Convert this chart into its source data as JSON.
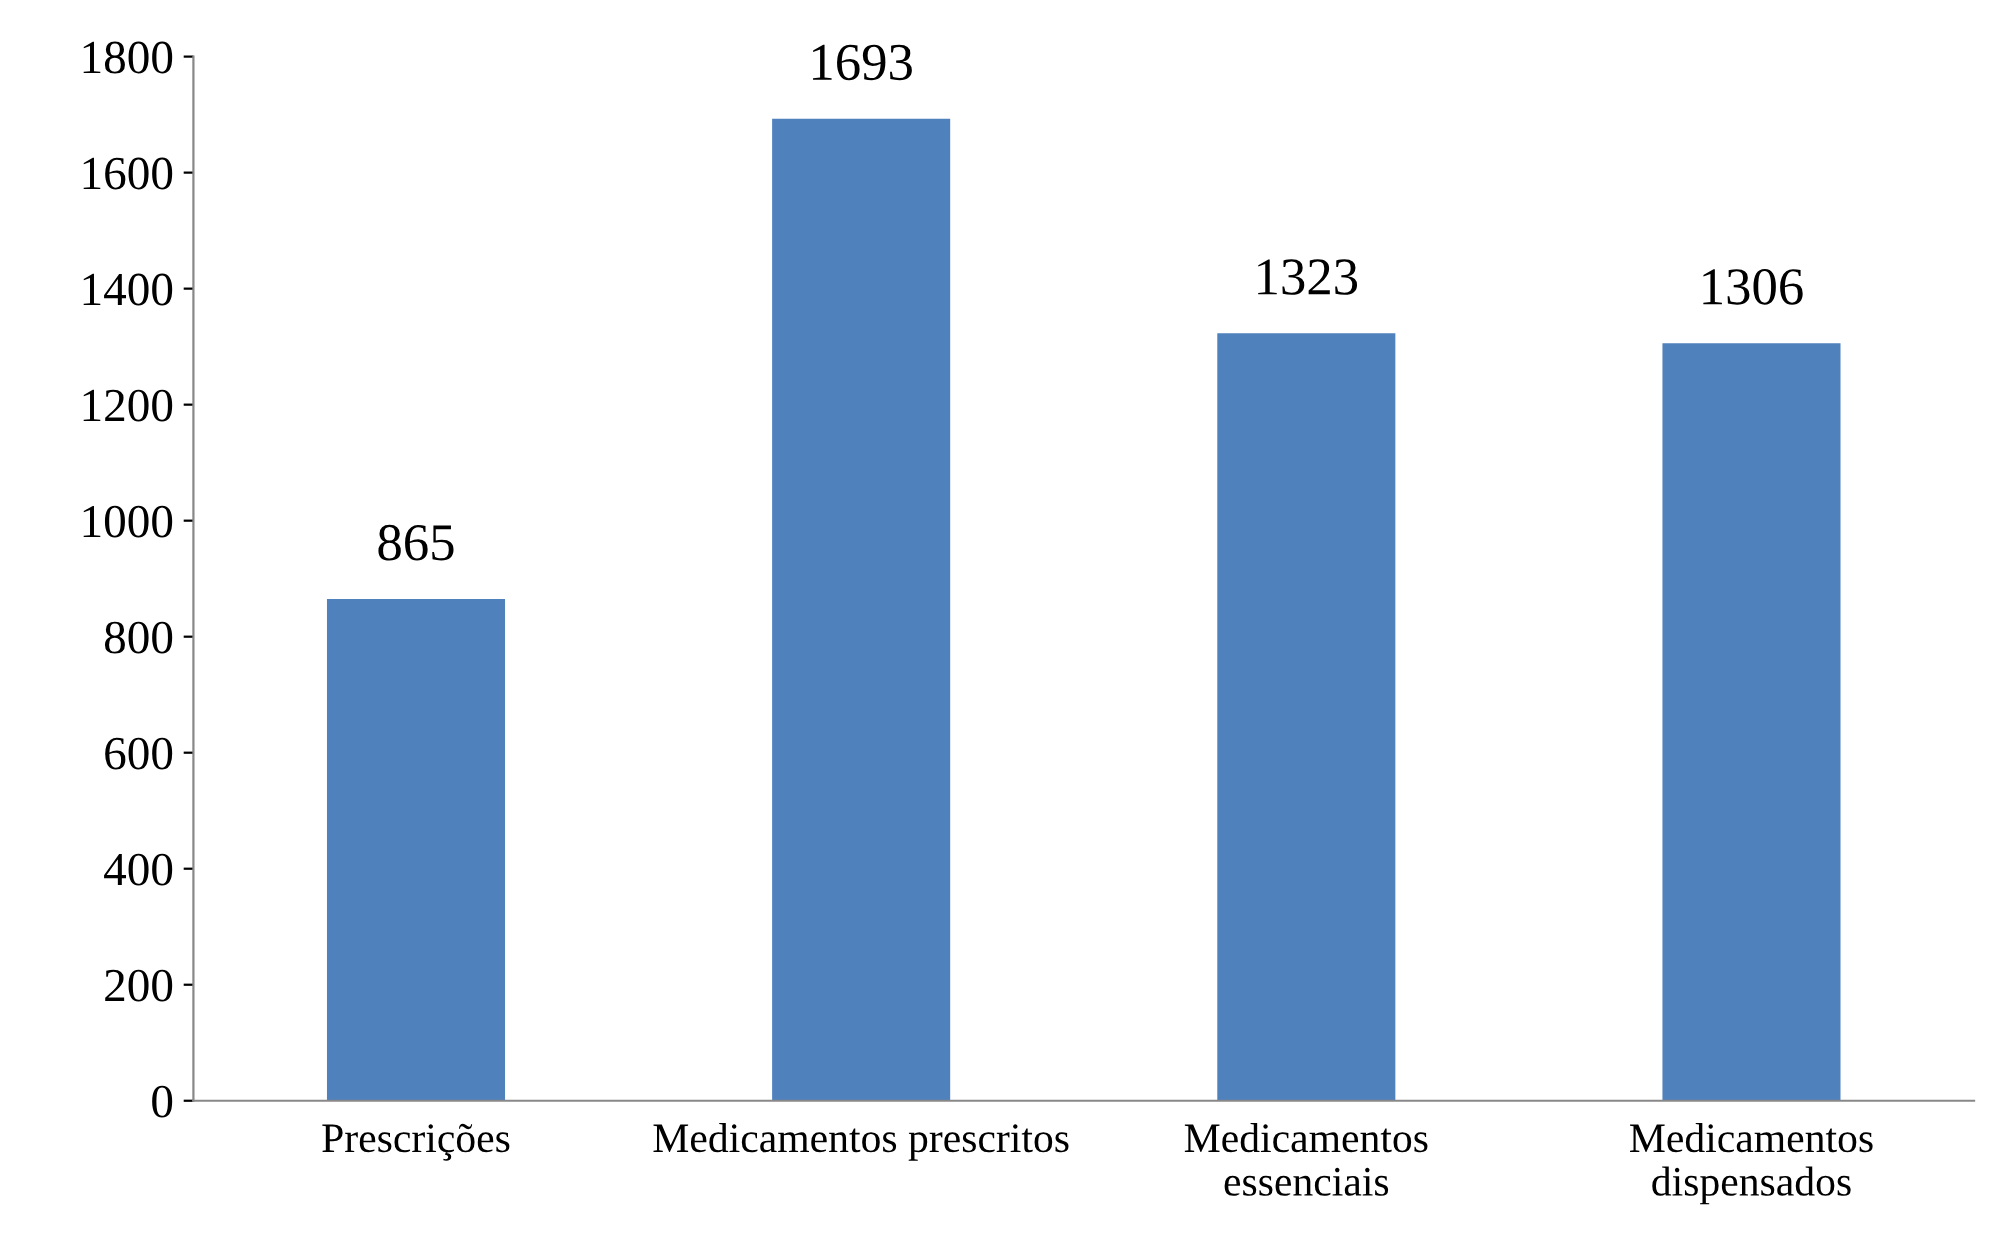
{
  "chart_data": {
    "type": "bar",
    "categories": [
      "Prescrições",
      "Medicamentos prescritos",
      "Medicamentos\nessenciais",
      "Medicamentos\ndispensados"
    ],
    "values": [
      865,
      1693,
      1323,
      1306
    ],
    "color": "#4f81bd",
    "ylim": [
      0,
      1800
    ],
    "yticks": [
      0,
      200,
      400,
      600,
      800,
      1000,
      1200,
      1400,
      1600,
      1800
    ],
    "data_labels": true,
    "grid": false,
    "legend": false
  }
}
